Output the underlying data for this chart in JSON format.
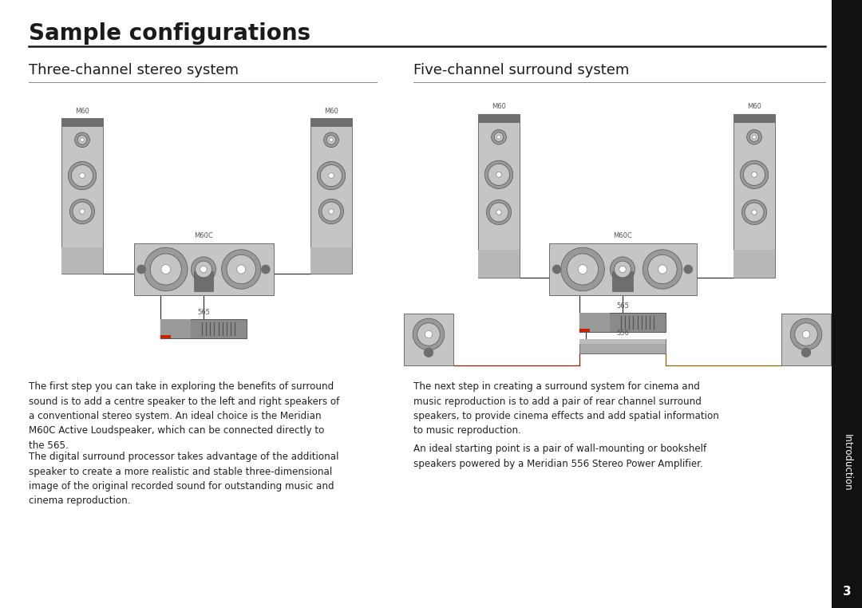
{
  "title": "Sample configurations",
  "section1_title": "Three-channel stereo system",
  "section2_title": "Five-channel surround system",
  "para1_1": "The first step you can take in exploring the benefits of surround\nsound is to add a centre speaker to the left and right speakers of\na conventional stereo system. An ideal choice is the Meridian\nM60C Active Loudspeaker, which can be connected directly to\nthe 565.",
  "para1_2": "The digital surround processor takes advantage of the additional\nspeaker to create a more realistic and stable three-dimensional\nimage of the original recorded sound for outstanding music and\ncinema reproduction.",
  "para2_1": "The next step in creating a surround system for cinema and\nmusic reproduction is to add a pair of rear channel surround\nspeakers, to provide cinema effects and add spatial information\nto music reproduction.",
  "para2_2": "An ideal starting point is a pair of wall-mounting or bookshelf\nspeakers powered by a Meridian 556 Stereo Power Amplifier.",
  "bg_color": "#ffffff",
  "text_color": "#1a1a1a",
  "gray_light": "#c5c5c5",
  "gray_mid": "#999999",
  "gray_dark": "#6e6e6e",
  "gray_darker": "#555555",
  "gray_darkest": "#444444",
  "sidebar_color": "#111111"
}
